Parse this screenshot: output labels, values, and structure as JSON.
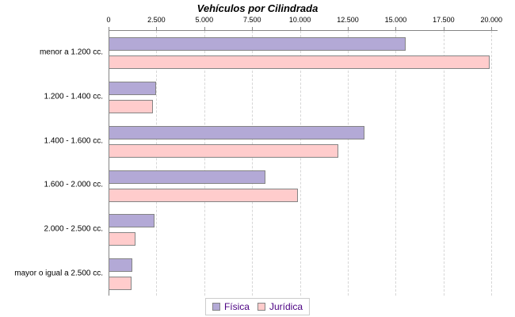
{
  "chart_data": {
    "type": "bar",
    "orientation": "horizontal",
    "title": "Vehículos por Cilindrada",
    "xlabel": "",
    "ylabel": "",
    "categories": [
      "menor a 1.200 cc.",
      "1.200 - 1.400 cc.",
      "1.400 - 1.600 cc.",
      "1.600 - 2.000 cc.",
      "2.000 - 2.500 cc.",
      "mayor o igual a 2.500 cc."
    ],
    "series": [
      {
        "name": "Física",
        "color": "#b3a9d6",
        "values": [
          15500,
          2500,
          13350,
          8200,
          2400,
          1250
        ]
      },
      {
        "name": "Jurídica",
        "color": "#ffcccc",
        "values": [
          19900,
          2300,
          12000,
          9900,
          1400,
          1200
        ]
      }
    ],
    "x_axis": {
      "position": "top",
      "min": 0,
      "max": 20000,
      "tick_interval": 2500,
      "tick_labels": [
        "0",
        "2.500",
        "5.000",
        "7.500",
        "10.000",
        "12.500",
        "15.000",
        "17.500",
        "20.000"
      ]
    },
    "legend": {
      "position": "bottom",
      "entries": [
        "Física",
        "Jurídica"
      ]
    },
    "grid": "vertical-dashed",
    "colors": {
      "bar_border": "#848484",
      "axis": "#848484",
      "gridline": "#d6d6d6",
      "title_text": "#000000",
      "label_text": "#000000",
      "legend_text": "#4b0082",
      "legend_border": "#cccccc",
      "background": "#ffffff"
    }
  }
}
